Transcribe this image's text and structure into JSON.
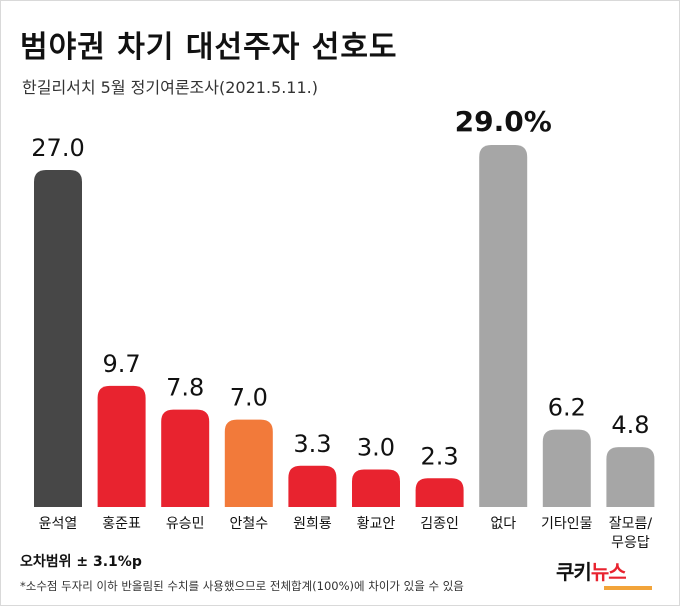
{
  "header": {
    "title": "범야권 차기 대선주자 선호도",
    "subtitle": "한길리서치 5월 정기여론조사(2021.5.11.)"
  },
  "chart_data": {
    "type": "bar",
    "title": "범야권 차기 대선주자 선호도",
    "subtitle": "한길리서치 5월 정기여론조사(2021.5.11.)",
    "xlabel": "",
    "ylabel": "",
    "ylim": [
      0,
      29.0
    ],
    "grid": false,
    "legend": "none",
    "categories": [
      "윤석열",
      "홍준표",
      "유승민",
      "안철수",
      "원희룡",
      "황교안",
      "김종인",
      "없다",
      "기타인물",
      "잘모름/\n무응답"
    ],
    "values": [
      27.0,
      9.7,
      7.8,
      7.0,
      3.3,
      3.0,
      2.3,
      29.0,
      6.2,
      4.8
    ],
    "value_labels": [
      "27.0",
      "9.7",
      "7.8",
      "7.0",
      "3.3",
      "3.0",
      "2.3",
      "29.0%",
      "6.2",
      "4.8"
    ],
    "colors": [
      "#474747",
      "#e8232f",
      "#e8232f",
      "#f27a3a",
      "#e8232f",
      "#e8232f",
      "#e8232f",
      "#a6a6a6",
      "#a6a6a6",
      "#a6a6a6"
    ]
  },
  "notes": {
    "margin_of_error": "오차범위 ± 3.1%p",
    "footnote": "*소수점 두자리 이하 반올림된 수치를 사용했으므로 전체합계(100%)에 차이가 있을 수 있음"
  },
  "logo": {
    "part1": "쿠키",
    "part2": "뉴스"
  }
}
